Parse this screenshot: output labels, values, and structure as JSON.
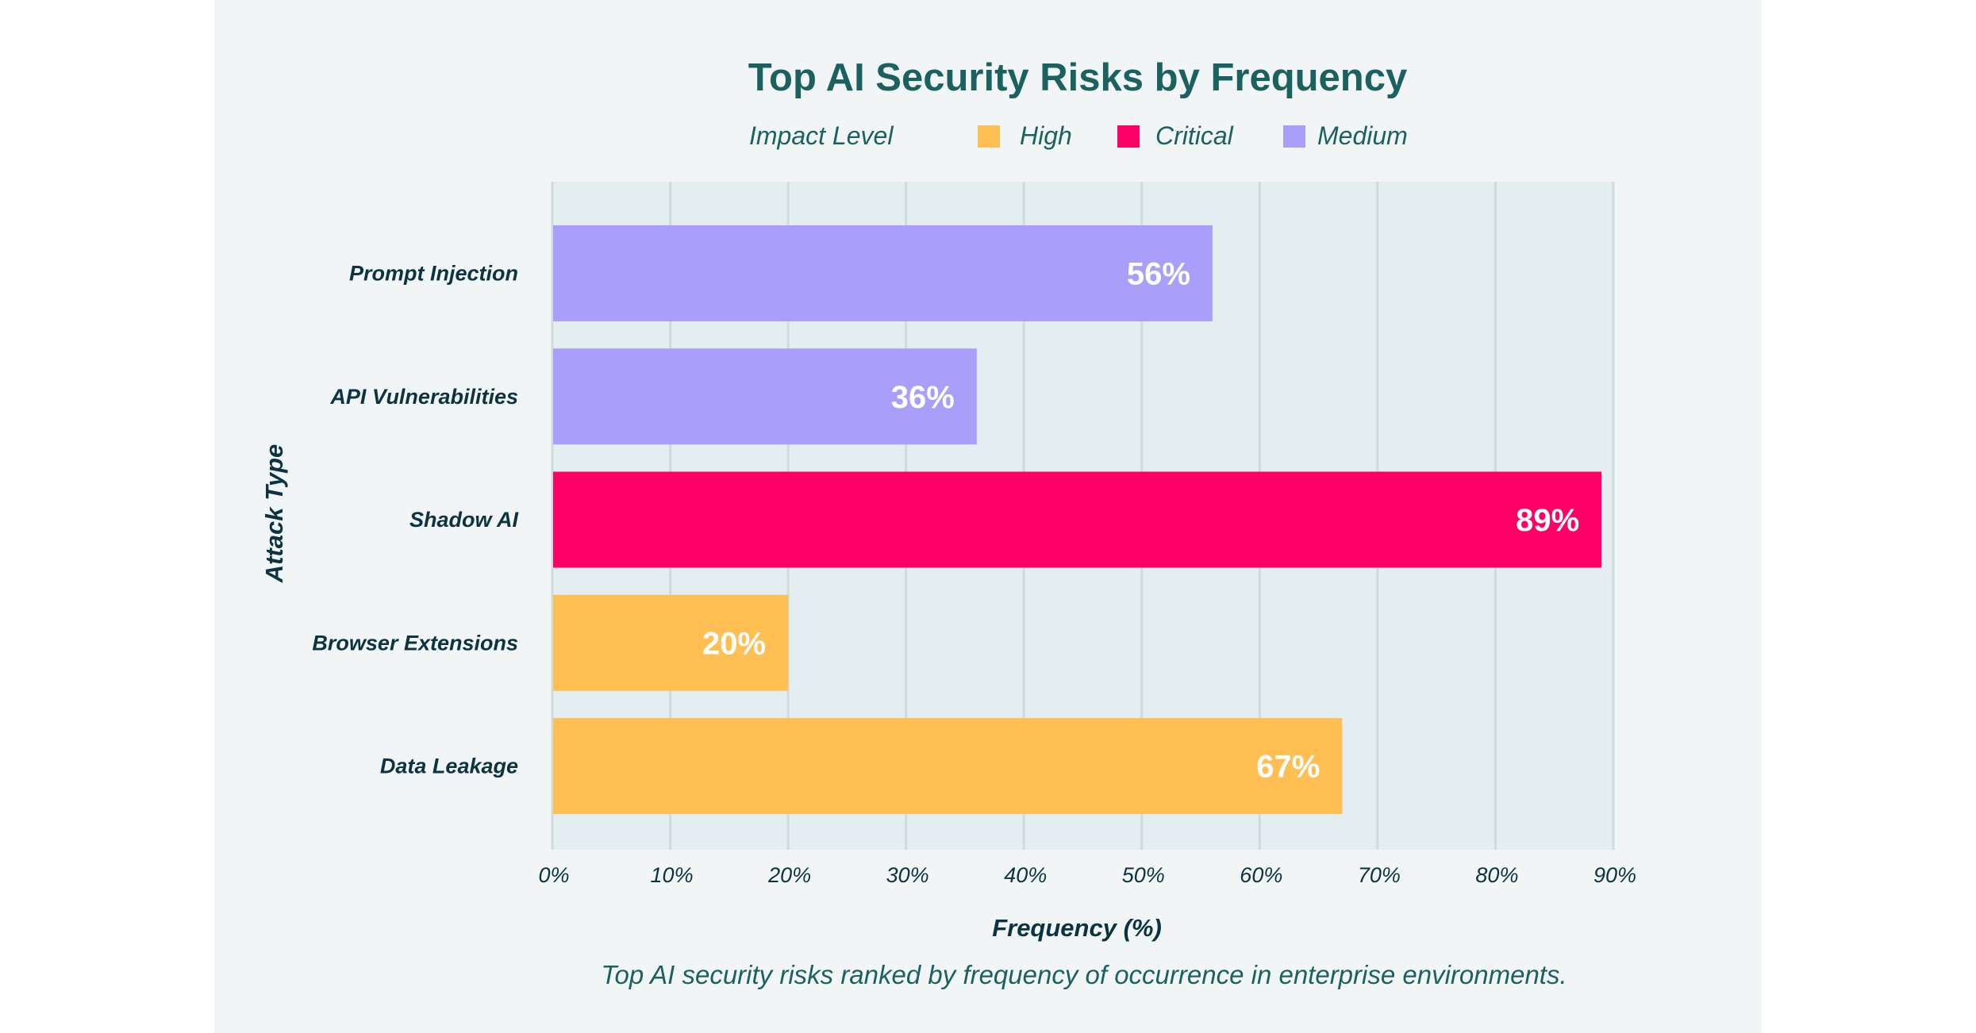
{
  "chart_data": {
    "type": "bar",
    "orientation": "horizontal",
    "title": "Top AI Security Risks by Frequency",
    "legend": {
      "title": "Impact Level",
      "placement": "top-center",
      "entries": [
        {
          "label": "High",
          "color": "#ffbf52"
        },
        {
          "label": "Critical",
          "color": "#ff0066"
        },
        {
          "label": "Medium",
          "color": "#a99ffb"
        }
      ]
    },
    "categories": [
      "Prompt Injection",
      "API Vulnerabilities",
      "Shadow AI",
      "Browser Extensions",
      "Data Leakage"
    ],
    "values": [
      56,
      36,
      89,
      20,
      67
    ],
    "value_labels": [
      "56%",
      "36%",
      "89%",
      "20%",
      "67%"
    ],
    "impact": [
      "Medium",
      "Medium",
      "Critical",
      "High",
      "High"
    ],
    "xlabel": "Frequency (%)",
    "ylabel": "Attack Type",
    "xlim": [
      0,
      90
    ],
    "xticks": [
      0,
      10,
      20,
      30,
      40,
      50,
      60,
      70,
      80,
      90
    ],
    "xtick_labels": [
      "0%",
      "10%",
      "20%",
      "30%",
      "40%",
      "50%",
      "60%",
      "70%",
      "80%",
      "90%"
    ],
    "grid": "vertical",
    "caption": "Top AI security risks ranked by frequency of occurrence in enterprise environments."
  },
  "colors": {
    "High": "#ffbf52",
    "Critical": "#ff0066",
    "Medium": "#a99ffb"
  }
}
